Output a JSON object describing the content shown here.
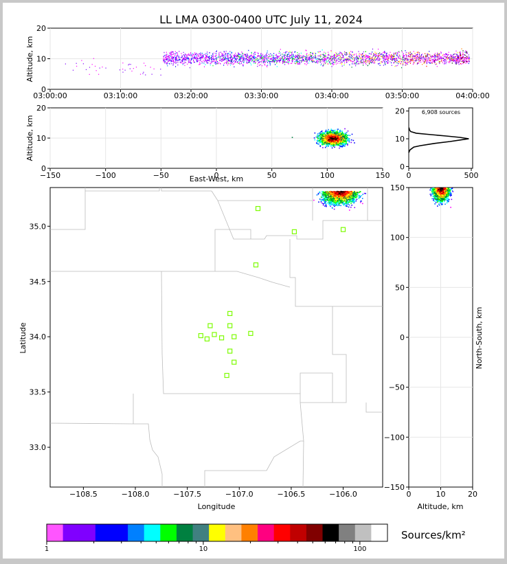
{
  "title": "LL LMA 0300-0400 UTC July 11, 2024",
  "units_label": "Sources/km²",
  "chart_data": [
    {
      "type": "scatter",
      "panel": "altitude-vs-time",
      "ylabel": "Altitude, km",
      "xlabel": "",
      "x_ticks": [
        "03:00:00",
        "03:10:00",
        "03:20:00",
        "03:30:00",
        "03:40:00",
        "03:50:00",
        "04:00:00"
      ],
      "x_range_minutes": [
        0,
        60
      ],
      "ylim": [
        0,
        20
      ],
      "y_ticks": [
        0,
        10,
        20
      ],
      "points_summary": "dense band of sources at 8-14 km from ~03:16 to 04:00, sparse before"
    },
    {
      "type": "scatter",
      "panel": "altitude-vs-east-west",
      "ylabel": "Altitude, km",
      "xlabel": "East-West, km",
      "xlim": [
        -150,
        150
      ],
      "x_ticks": [
        -150,
        -100,
        -50,
        0,
        50,
        100,
        150
      ],
      "ylim": [
        0,
        20
      ],
      "y_ticks": [
        0,
        10,
        20
      ],
      "cluster_center": [
        105,
        10
      ]
    },
    {
      "type": "line",
      "panel": "altitude-histogram",
      "xlim": [
        0,
        500
      ],
      "x_ticks": [
        0,
        500
      ],
      "ylim": [
        0,
        20
      ],
      "y_ticks": [
        0,
        10,
        20
      ],
      "annotation": "6,908 sources",
      "profile": [
        [
          0,
          5
        ],
        [
          10,
          6
        ],
        [
          40,
          7
        ],
        [
          90,
          7.5
        ],
        [
          200,
          8.3
        ],
        [
          330,
          9
        ],
        [
          420,
          9.6
        ],
        [
          480,
          10
        ],
        [
          410,
          10.5
        ],
        [
          300,
          11
        ],
        [
          150,
          11.6
        ],
        [
          60,
          12
        ],
        [
          15,
          12.6
        ],
        [
          5,
          13.3
        ],
        [
          2,
          14
        ]
      ]
    },
    {
      "type": "scatter",
      "panel": "plan-view",
      "xlabel": "Longitude",
      "ylabel": "Latitude",
      "xlim": [
        -108.82,
        -105.62
      ],
      "ylim": [
        32.64,
        35.35
      ],
      "x_ticks": [
        -108.5,
        -108.0,
        -107.5,
        -107.0,
        -106.5,
        -106.0
      ],
      "x_tick_labels": [
        "−108.5",
        "−108.0",
        "−107.5",
        "−107.0",
        "−106.5",
        "−106.0"
      ],
      "y_ticks": [
        33.0,
        33.5,
        34.0,
        34.5,
        35.0
      ],
      "y_tick_labels": [
        "33.0",
        "33.5",
        "34.0",
        "34.5",
        "35.0"
      ],
      "stations": [
        [
          -106.82,
          35.16
        ],
        [
          -106.47,
          34.95
        ],
        [
          -106.0,
          34.97
        ],
        [
          -106.84,
          34.65
        ],
        [
          -107.09,
          34.21
        ],
        [
          -107.28,
          34.1
        ],
        [
          -107.09,
          34.1
        ],
        [
          -107.37,
          34.01
        ],
        [
          -107.24,
          34.02
        ],
        [
          -107.31,
          33.98
        ],
        [
          -107.17,
          33.99
        ],
        [
          -107.05,
          34.0
        ],
        [
          -106.89,
          34.03
        ],
        [
          -107.09,
          33.87
        ],
        [
          -107.05,
          33.77
        ],
        [
          -107.12,
          33.65
        ]
      ],
      "station_color": "#7cfc00"
    },
    {
      "type": "scatter",
      "panel": "north-south-vs-altitude",
      "xlabel": "Altitude, km",
      "ylabel": "North-South, km",
      "xlim": [
        0,
        20
      ],
      "x_ticks": [
        0,
        10,
        20
      ],
      "ylim": [
        -150,
        150
      ],
      "y_ticks": [
        -150,
        -100,
        -50,
        0,
        50,
        100,
        150
      ],
      "y_tick_labels": [
        "−150",
        "−100",
        "−50",
        "0",
        "50",
        "100",
        "150"
      ]
    },
    {
      "type": "colorbar",
      "scale": "log",
      "range": [
        1,
        150
      ],
      "tick_labels": [
        "1",
        "10",
        "100"
      ],
      "colors": [
        "#ff55ff",
        "#8000ff",
        "#7f00ff",
        "#0000ff",
        "#0000ff",
        "#0080ff",
        "#00ffff",
        "#00ff00",
        "#008040",
        "#408080",
        "#ffff00",
        "#ffc080",
        "#ff8000",
        "#ff0080",
        "#ff0000",
        "#c00000",
        "#800000",
        "#000000",
        "#808080",
        "#c0c0c0",
        "#ffffff"
      ]
    }
  ]
}
